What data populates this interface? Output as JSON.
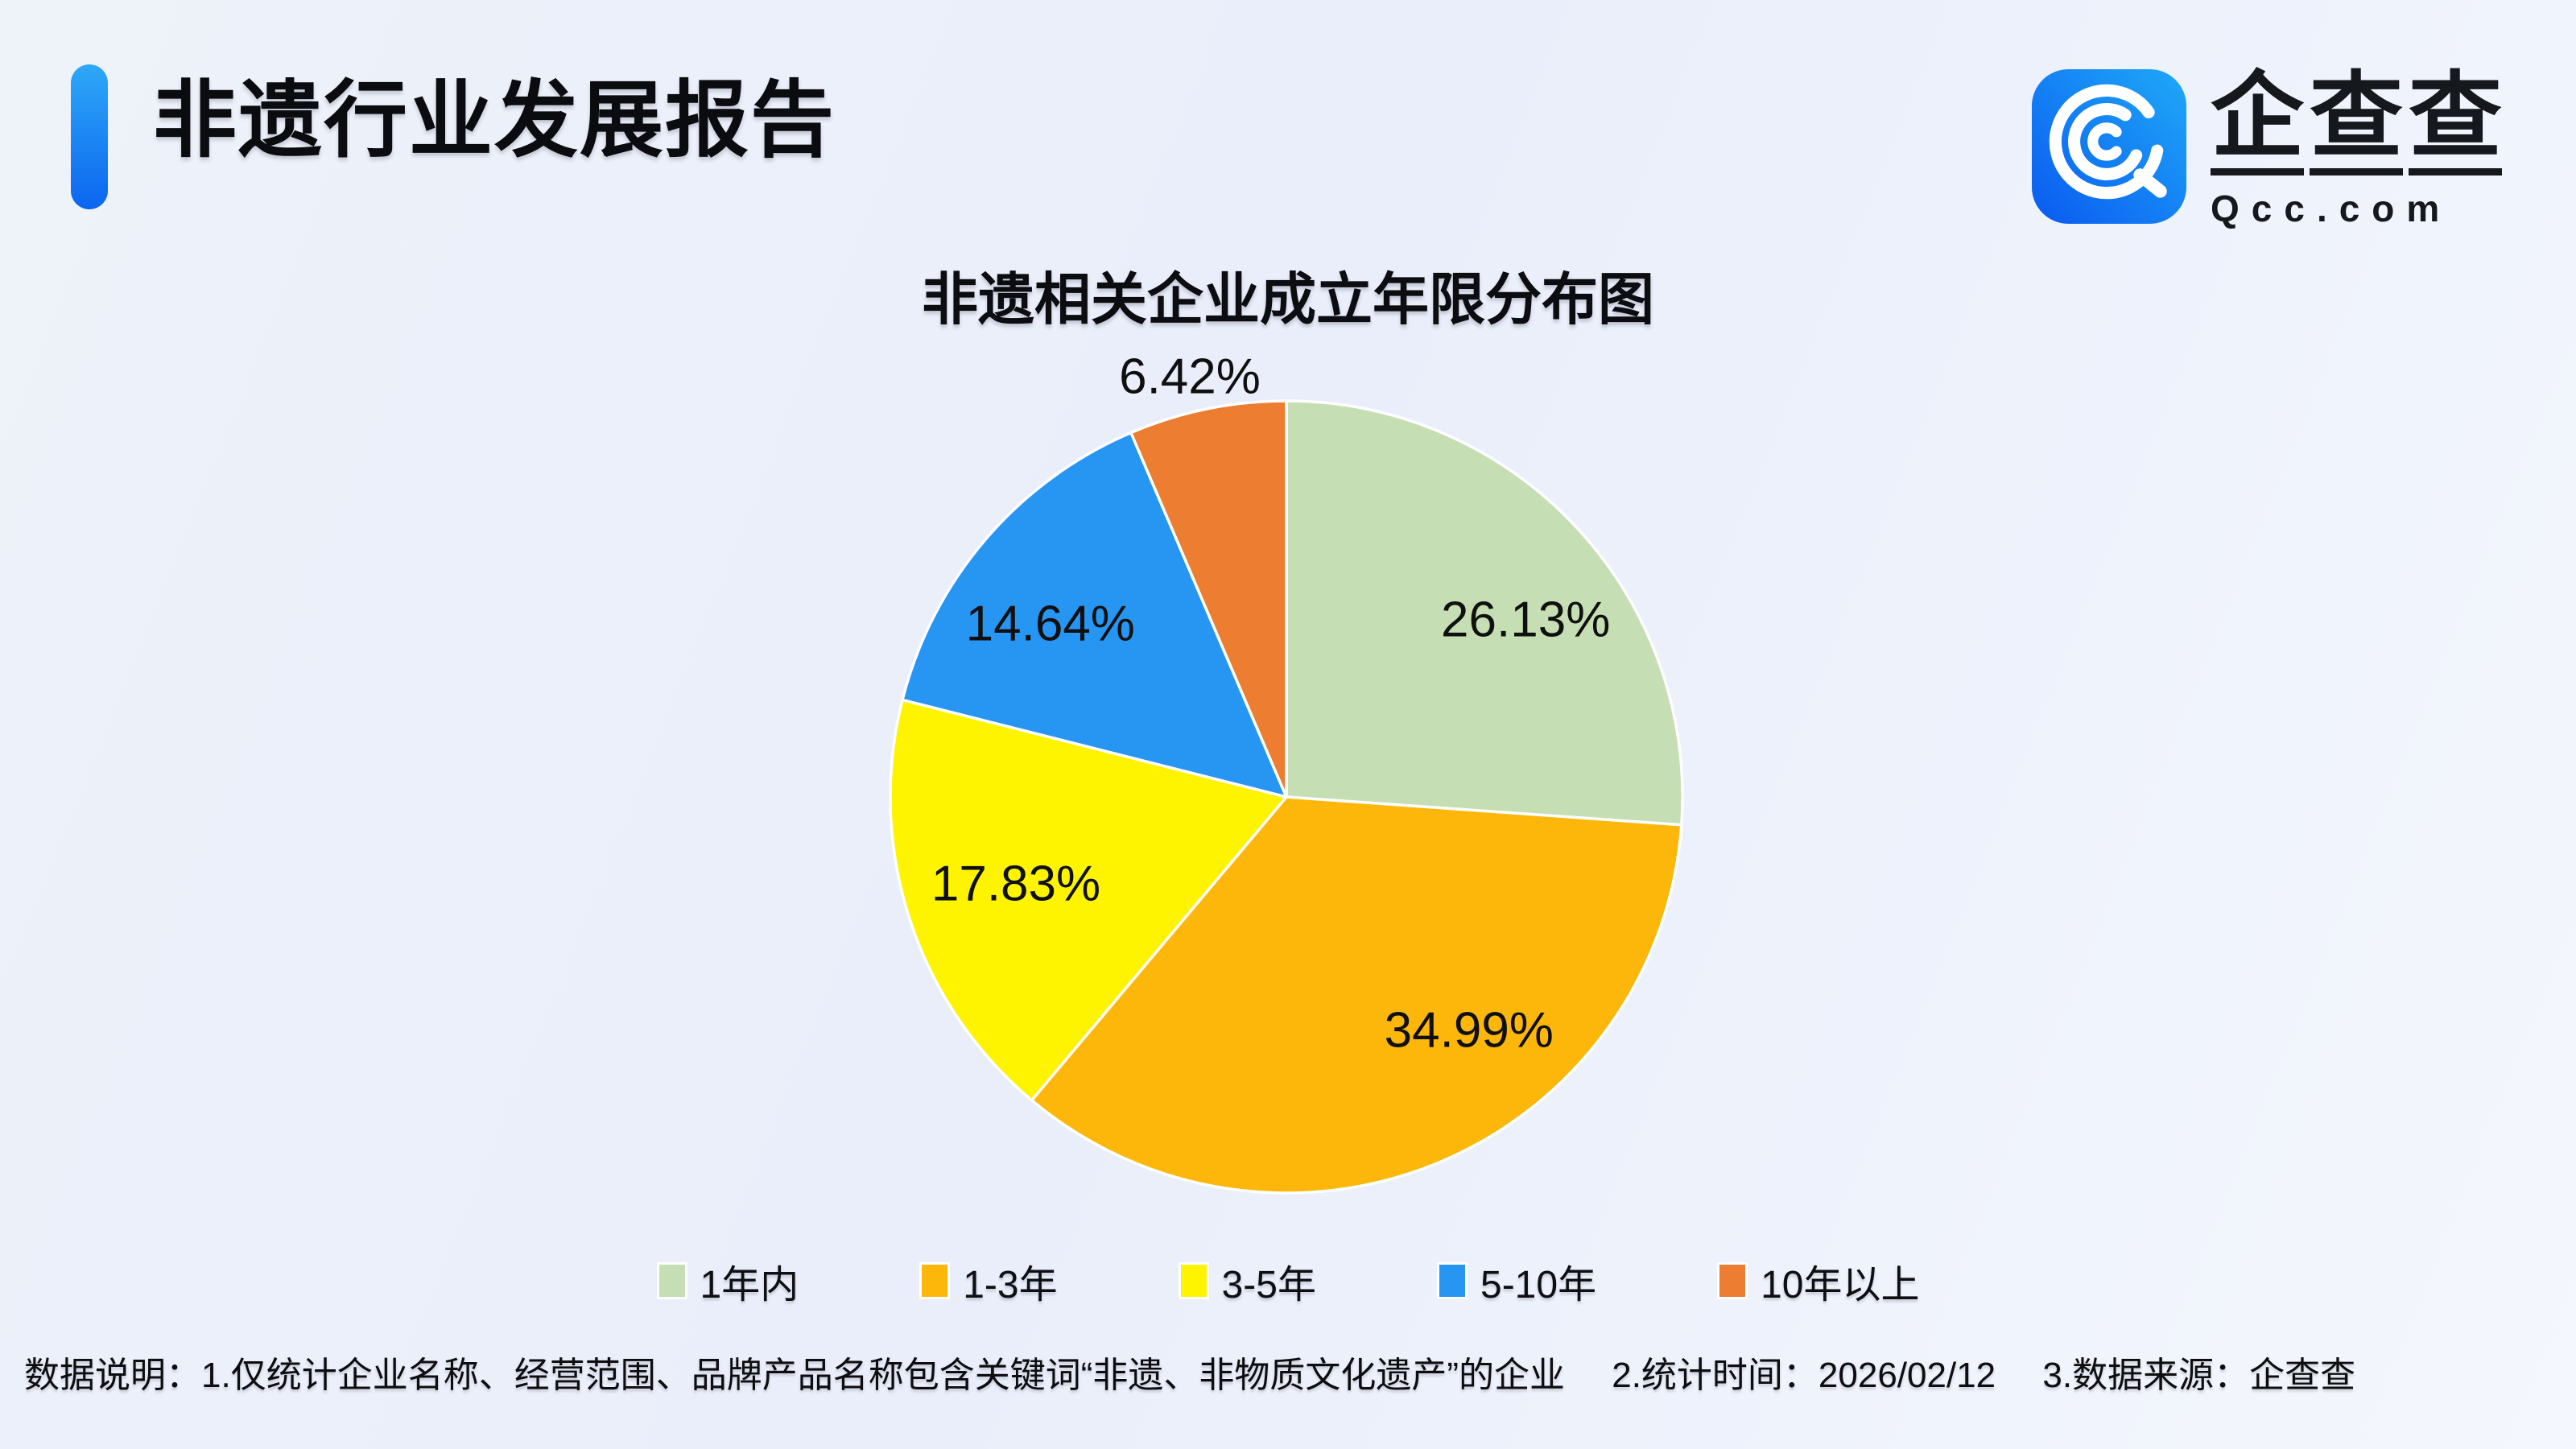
{
  "header": {
    "title": "非遗行业发展报告",
    "accent_color": "#1285f0"
  },
  "brand": {
    "name": "企查查",
    "domain": "Qcc.com",
    "icon": "qcc-magnifier-logo",
    "icon_colors": [
      "#0a5af0",
      "#1fa9f8"
    ]
  },
  "chart_data": {
    "type": "pie",
    "title": "非遗相关企业成立年限分布图",
    "categories": [
      "1年内",
      "1-3年",
      "3-5年",
      "5-10年",
      "10年以上"
    ],
    "values": [
      26.13,
      34.99,
      17.83,
      14.64,
      6.42
    ],
    "labels": [
      "26.13%",
      "34.99%",
      "17.83%",
      "14.64%",
      "6.42%"
    ],
    "unit": "%",
    "colors": [
      "#c6deb3",
      "#fcb70a",
      "#fef400",
      "#2796f3",
      "#ed7d31"
    ],
    "start_angle_deg": 0,
    "direction": "clockwise",
    "slice_border_color": "#ffffff",
    "legend_position": "bottom",
    "label_pos": [
      [
        0.604,
        -0.447
      ],
      [
        0.461,
        0.589
      ],
      [
        -0.683,
        0.22
      ],
      [
        -0.596,
        -0.437
      ],
      [
        -0.244,
        -1.061
      ]
    ]
  },
  "footer": {
    "parts": [
      "数据说明：1.仅统计企业名称、经营范围、品牌产品名称包含关键词“非遗、非物质文化遗产”的企业",
      "2.统计时间：2026/02/12",
      "3.数据来源：企查查"
    ]
  }
}
